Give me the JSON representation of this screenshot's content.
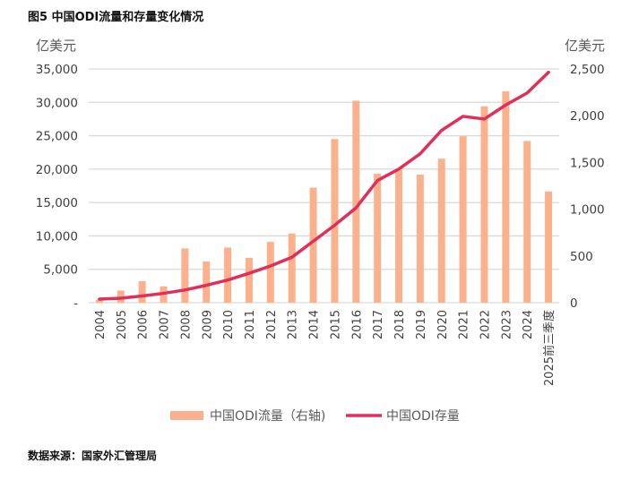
{
  "title": "图5 中国ODI流量和存量变化情况",
  "source": "数据来源：国家外汇管理局",
  "colors": {
    "bar": "#FBB28C",
    "line": "#E0305A",
    "grid": "#D9D9D9"
  },
  "chart_data": {
    "type": "bar+line",
    "title": "图5 中国ODI流量和存量变化情况",
    "categories": [
      "2004",
      "2005",
      "2006",
      "2007",
      "2008",
      "2009",
      "2010",
      "2011",
      "2012",
      "2013",
      "2014",
      "2015",
      "2016",
      "2017",
      "2018",
      "2019",
      "2020",
      "2021",
      "2022",
      "2023",
      "2024",
      "2025前三季度"
    ],
    "left_axis": {
      "unit": "亿美元",
      "ylim": [
        0,
        35000
      ],
      "ticks": [
        0,
        5000,
        10000,
        15000,
        20000,
        25000,
        30000,
        35000
      ],
      "tick_labels": [
        "-",
        "5,000",
        "10,000",
        "15,000",
        "20,000",
        "25,000",
        "30,000",
        "35,000"
      ]
    },
    "right_axis": {
      "unit": "亿美元",
      "ylim": [
        0,
        2500
      ],
      "ticks": [
        0,
        500,
        1000,
        1500,
        2000,
        2500
      ],
      "tick_labels": [
        "0",
        "500",
        "1,000",
        "1,500",
        "2,000",
        "2,500"
      ]
    },
    "series": [
      {
        "name": "中国ODI流量（右轴)",
        "type": "bar",
        "axis": "right",
        "values": [
          30,
          130,
          230,
          175,
          580,
          440,
          590,
          480,
          650,
          740,
          1230,
          1750,
          2160,
          1380,
          1420,
          1370,
          1540,
          1780,
          2100,
          2260,
          1730,
          1190
        ]
      },
      {
        "name": "中国ODI存量",
        "type": "line",
        "axis": "left",
        "values": [
          530,
          670,
          1000,
          1400,
          1900,
          2600,
          3400,
          4400,
          5500,
          6800,
          9200,
          11600,
          14200,
          18300,
          20000,
          22300,
          25800,
          27900,
          27500,
          29600,
          31400,
          34500
        ]
      }
    ],
    "grid": true,
    "legend": "bottom"
  }
}
